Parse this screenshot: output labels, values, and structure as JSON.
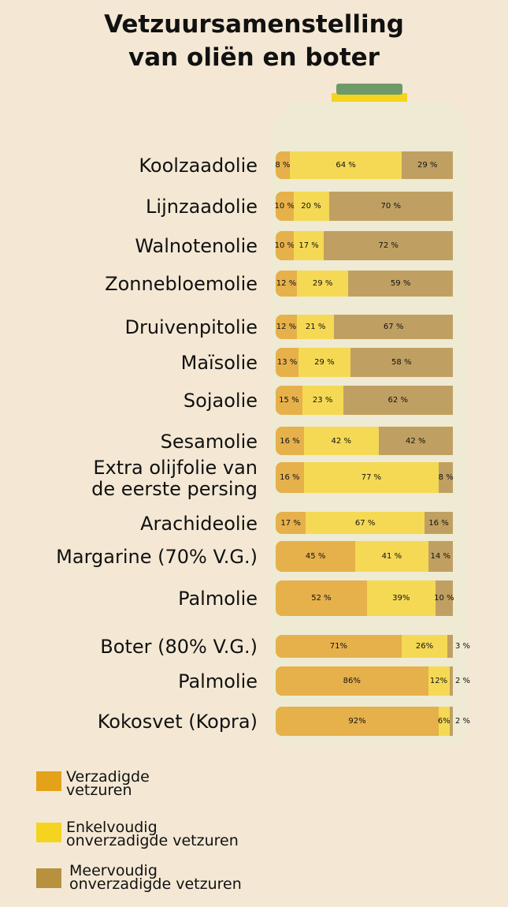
{
  "colors": {
    "saturated": "#E6B04B",
    "mono": "#F5D955",
    "poly": "#C0A062",
    "legend_saturated": "#E3A21A",
    "legend_mono": "#F5D41F",
    "legend_poly": "#B8913F"
  },
  "chart_data": {
    "type": "bar",
    "orientation": "horizontal",
    "stacked": true,
    "title": "Vetzuursamenstelling van oliën en boter",
    "title_lines": [
      "Vetzuursamenstelling",
      "van oliën en boter"
    ],
    "categories": [
      "Koolzaadolie",
      "Lijnzaadolie",
      "Walnotenolie",
      "Zonnebloemolie",
      "Druivenpitolie",
      "Maïsolie",
      "Sojaolie",
      "Sesamolie",
      "Extra olijfolie van de eerste persing",
      "Arachideolie",
      "Margarine (70% V.G.)",
      "Palmolie",
      "Boter (80% V.G.)",
      "Palmolie",
      "Kokosvet (Kopra)"
    ],
    "category_lines": [
      [
        "Koolzaadolie"
      ],
      [
        "Lijnzaadolie"
      ],
      [
        "Walnotenolie"
      ],
      [
        "Zonnebloemolie"
      ],
      [
        "Druivenpitolie"
      ],
      [
        "Maïsolie"
      ],
      [
        "Sojaolie"
      ],
      [
        "Sesamolie"
      ],
      [
        "Extra olijfolie van",
        "de eerste persing"
      ],
      [
        "Arachideolie"
      ],
      [
        "Margarine (70% V.G.)"
      ],
      [
        "Palmolie"
      ],
      [
        "Boter (80% V.G.)"
      ],
      [
        "Palmolie"
      ],
      [
        "Kokosvet (Kopra)"
      ]
    ],
    "series": [
      {
        "name": "Verzadigde vetzuren",
        "values": [
          8,
          10,
          10,
          12,
          12,
          13,
          15,
          16,
          16,
          17,
          45,
          52,
          71,
          86,
          92
        ],
        "labels": [
          "8 %",
          "10 %",
          "10 %",
          "12 %",
          "12 %",
          "13 %",
          "15 %",
          "16 %",
          "16 %",
          "17 %",
          "45 %",
          "52 %",
          "71%",
          "86%",
          "92%"
        ]
      },
      {
        "name": "Enkelvoudig onverzadigde vetzuren",
        "values": [
          64,
          20,
          17,
          29,
          21,
          29,
          23,
          42,
          77,
          67,
          41,
          39,
          26,
          12,
          6
        ],
        "labels": [
          "64 %",
          "20 %",
          "17 %",
          "29 %",
          "21 %",
          "29 %",
          "23 %",
          "42 %",
          "77 %",
          "67 %",
          "41 %",
          "39%",
          "26%",
          "12%",
          "6%"
        ]
      },
      {
        "name": "Meervoudig onverzadigde vetzuren",
        "values": [
          29,
          70,
          72,
          59,
          67,
          58,
          62,
          42,
          8,
          16,
          14,
          10,
          3,
          2,
          2
        ],
        "labels": [
          "29 %",
          "70 %",
          "72 %",
          "59 %",
          "67 %",
          "58 %",
          "62 %",
          "42 %",
          "8 %",
          "16 %",
          "14 %",
          "10 %",
          "3 %",
          "2 %",
          "2 %"
        ]
      }
    ],
    "legend": {
      "placement": "bottom-left",
      "entries": [
        [
          "Verzadigde",
          "vetzuren"
        ],
        [
          "Enkelvoudig",
          "onverzadigde vetzuren"
        ],
        [
          "Meervoudig",
          "onverzadigde vetzuren"
        ]
      ]
    },
    "grid": false
  }
}
